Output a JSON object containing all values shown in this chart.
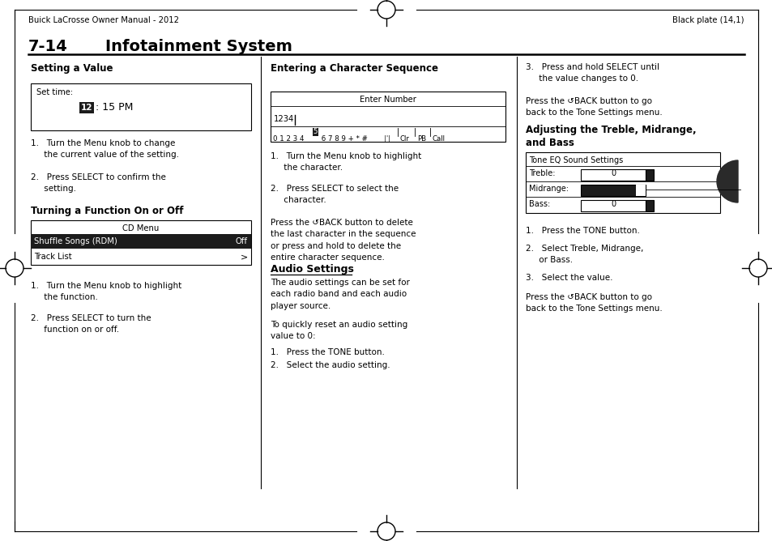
{
  "bg_color": "#ffffff",
  "header_left": "Buick LaCrosse Owner Manual - 2012",
  "header_right": "Black plate (14,1)",
  "section_title": "7-14",
  "section_title2": "Infotainment System",
  "col1_heading": "Setting a Value",
  "col1_subheading": "Turning a Function On or Off",
  "col1_box2_title": "CD Menu",
  "col1_box2_row1": "Shuffle Songs (RDM)",
  "col1_box2_row1_val": "Off",
  "col1_box2_row2": "Track List",
  "col1_box2_row2_val": ">",
  "col2_heading": "Entering a Character Sequence",
  "col2_box1_title": "Enter Number",
  "col2_subheading": "Audio Settings",
  "col3_subheading1": "Adjusting the Treble, Midrange,",
  "col3_subheading2": "and Bass",
  "col3_box_title": "Tone EQ Sound Settings",
  "col3_box_treble": "Treble:",
  "col3_box_treble_val": "0",
  "col3_box_midrange": "Midrange:",
  "col3_box_bass": "Bass:",
  "col3_box_bass_val": "0"
}
